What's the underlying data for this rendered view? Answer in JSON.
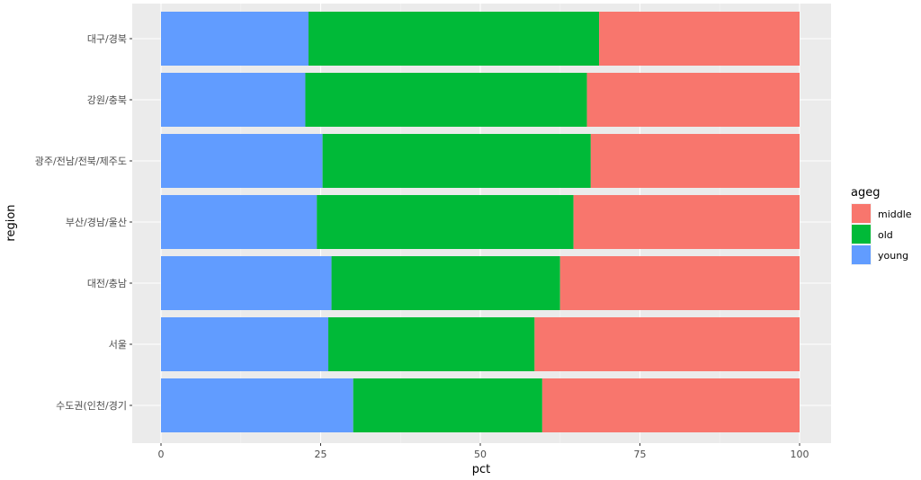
{
  "chart_data": {
    "type": "bar",
    "orientation": "horizontal",
    "stacked": true,
    "xlabel": "pct",
    "ylabel": "region",
    "xlim": [
      0,
      100
    ],
    "x_ticks": [
      0,
      25,
      50,
      75,
      100
    ],
    "categories": [
      "수도권(인천/경기",
      "서울",
      "대전/충남",
      "부산/경남/울산",
      "광주/전남/전북/제주도",
      "강원/충북",
      "대구/경북"
    ],
    "series": [
      {
        "name": "young",
        "color": "#619CFF",
        "values": [
          30.1,
          26.2,
          26.7,
          24.4,
          25.3,
          22.6,
          23.1
        ]
      },
      {
        "name": "old",
        "color": "#00BA38",
        "values": [
          29.6,
          32.3,
          35.8,
          40.2,
          42.0,
          44.1,
          45.5
        ]
      },
      {
        "name": "middle",
        "color": "#F8766D",
        "values": [
          40.3,
          41.5,
          37.5,
          35.4,
          32.7,
          33.3,
          31.4
        ]
      }
    ],
    "legend": {
      "title": "ageg",
      "position": "right",
      "entries": [
        {
          "label": "middle",
          "color": "#F8766D"
        },
        {
          "label": "old",
          "color": "#00BA38"
        },
        {
          "label": "young",
          "color": "#619CFF"
        }
      ]
    },
    "grid": true,
    "panel_background": "#EBEBEB",
    "grid_color": "#FFFFFF"
  }
}
